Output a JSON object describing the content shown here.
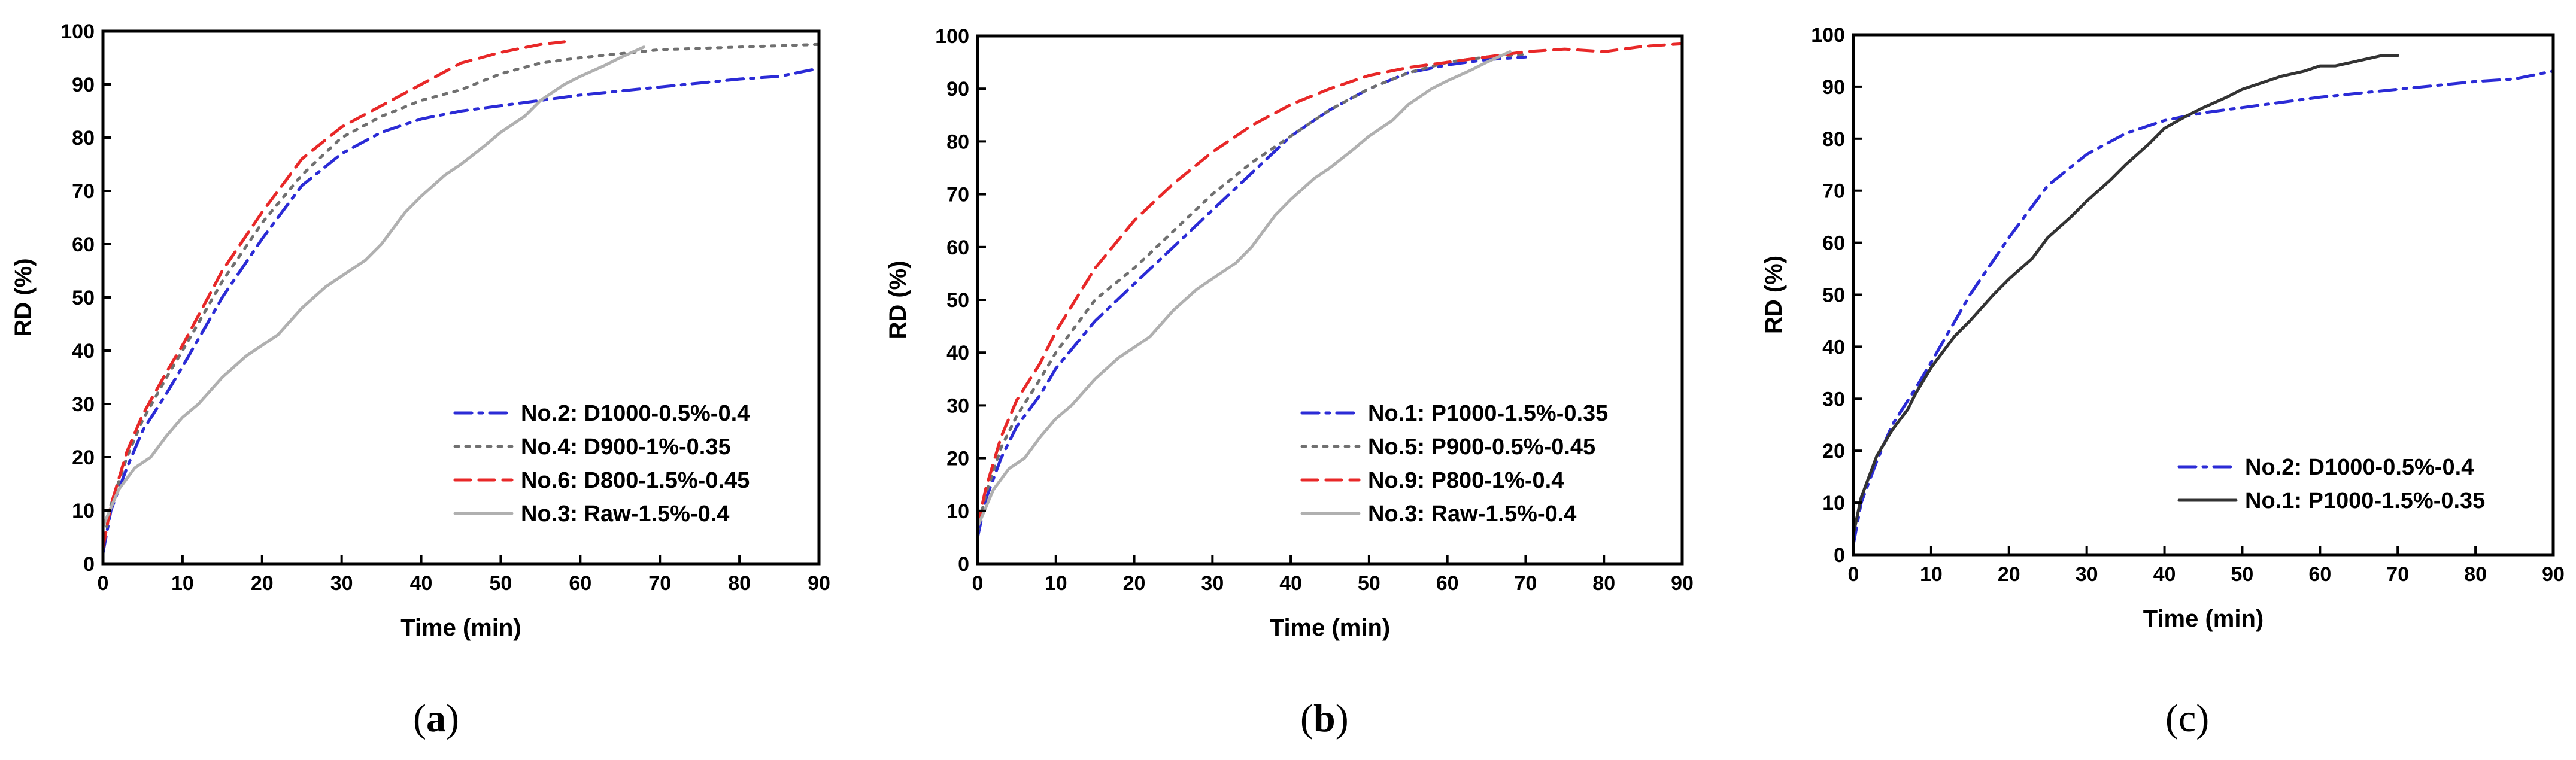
{
  "chart_data": [
    {
      "type": "line",
      "panel": "a",
      "caption": {
        "open": "(",
        "letter": "a",
        "close": ")",
        "bold": true
      },
      "xlabel": "Time (min)",
      "ylabel": "RD (%)",
      "xlim": [
        0,
        90
      ],
      "ylim": [
        0,
        100
      ],
      "xticks": [
        0,
        10,
        20,
        30,
        40,
        50,
        60,
        70,
        80,
        90
      ],
      "yticks": [
        0,
        10,
        20,
        30,
        40,
        50,
        60,
        70,
        80,
        90,
        100
      ],
      "legend_position": "bottom-right",
      "series": [
        {
          "name": "No.2: D1000-0.5%-0.4",
          "color": "#2b2bd6",
          "dash": "dashdot",
          "x": [
            0,
            1,
            3,
            5,
            8,
            10,
            15,
            20,
            25,
            30,
            35,
            40,
            45,
            50,
            55,
            60,
            70,
            80,
            85,
            90
          ],
          "y": [
            2,
            10,
            18,
            25,
            32,
            37,
            50,
            61,
            71,
            77,
            81,
            83.5,
            85,
            86,
            87,
            88,
            89.5,
            91,
            91.5,
            93
          ]
        },
        {
          "name": "No.4: D900-1%-0.35",
          "color": "#707070",
          "dash": "dot",
          "x": [
            0,
            1,
            3,
            5,
            8,
            10,
            15,
            20,
            25,
            30,
            35,
            40,
            45,
            50,
            55,
            60,
            70,
            80,
            90
          ],
          "y": [
            3,
            11,
            20,
            27,
            35,
            40,
            53,
            64,
            73,
            80,
            84,
            87,
            89,
            92,
            94,
            95,
            96.5,
            97,
            97.5
          ]
        },
        {
          "name": "No.6: D800-1.5%-0.45",
          "color": "#e82828",
          "dash": "dash",
          "x": [
            0,
            1,
            3,
            5,
            8,
            10,
            15,
            20,
            25,
            30,
            35,
            40,
            45,
            50,
            55,
            58
          ],
          "y": [
            3,
            11,
            21,
            28,
            36,
            41,
            55,
            66,
            76,
            82,
            86,
            90,
            94,
            96,
            97.5,
            98
          ]
        },
        {
          "name": "No.3: Raw-1.5%-0.4",
          "color": "#b0b0b0",
          "dash": "solid",
          "x": [
            0,
            2,
            4,
            6,
            8,
            10,
            12,
            15,
            18,
            20,
            22,
            25,
            28,
            30,
            33,
            35,
            38,
            40,
            43,
            45,
            48,
            50,
            53,
            55,
            58,
            60,
            63,
            65,
            68
          ],
          "y": [
            7,
            14,
            18,
            20,
            24,
            27.5,
            30,
            35,
            39,
            41,
            43,
            48,
            52,
            54,
            57,
            60,
            66,
            69,
            73,
            75,
            78.5,
            81,
            84,
            87,
            90,
            91.5,
            93.5,
            95,
            97
          ]
        }
      ]
    },
    {
      "type": "line",
      "panel": "b",
      "caption": {
        "open": "(",
        "letter": "b",
        "close": ")",
        "bold": true
      },
      "xlabel": "Time (min)",
      "ylabel": "RD (%)",
      "xlim": [
        0,
        90
      ],
      "ylim": [
        0,
        100
      ],
      "xticks": [
        0,
        10,
        20,
        30,
        40,
        50,
        60,
        70,
        80,
        90
      ],
      "yticks": [
        0,
        10,
        20,
        30,
        40,
        50,
        60,
        70,
        80,
        90,
        100
      ],
      "legend_position": "bottom-right",
      "series": [
        {
          "name": "No.1: P1000-1.5%-0.35",
          "color": "#2b2bd6",
          "dash": "dashdot",
          "x": [
            0,
            1,
            3,
            5,
            8,
            10,
            15,
            20,
            25,
            30,
            35,
            40,
            45,
            50,
            55,
            60,
            65,
            70
          ],
          "y": [
            5,
            12,
            20,
            26,
            32,
            37,
            46,
            53,
            60,
            67,
            74,
            81,
            86,
            90,
            93,
            94.5,
            95.5,
            96
          ]
        },
        {
          "name": "No.5: P900-0.5%-0.45",
          "color": "#707070",
          "dash": "dot",
          "x": [
            0,
            1,
            3,
            5,
            8,
            10,
            15,
            20,
            25,
            30,
            35,
            40,
            45,
            50,
            55,
            60,
            65,
            70
          ],
          "y": [
            6,
            13,
            22,
            28,
            35,
            40,
            50,
            56,
            63,
            70,
            76,
            81,
            86,
            90,
            93,
            95,
            96,
            96.5
          ]
        },
        {
          "name": "No.9: P800-1%-0.4",
          "color": "#e82828",
          "dash": "dash",
          "x": [
            0,
            1,
            3,
            5,
            8,
            10,
            15,
            20,
            25,
            30,
            35,
            40,
            45,
            50,
            55,
            60,
            65,
            70,
            75,
            80,
            85,
            90
          ],
          "y": [
            7,
            14,
            24,
            31,
            38,
            44,
            56,
            65,
            72,
            78,
            83,
            87,
            90,
            92.5,
            94,
            95,
            96,
            97,
            97.5,
            97,
            98,
            98.5
          ]
        },
        {
          "name": "No.3: Raw-1.5%-0.4",
          "color": "#b0b0b0",
          "dash": "solid",
          "x": [
            0,
            2,
            4,
            6,
            8,
            10,
            12,
            15,
            18,
            20,
            22,
            25,
            28,
            30,
            33,
            35,
            38,
            40,
            43,
            45,
            48,
            50,
            53,
            55,
            58,
            60,
            63,
            65,
            68
          ],
          "y": [
            7,
            14,
            18,
            20,
            24,
            27.5,
            30,
            35,
            39,
            41,
            43,
            48,
            52,
            54,
            57,
            60,
            66,
            69,
            73,
            75,
            78.5,
            81,
            84,
            87,
            90,
            91.5,
            93.5,
            95,
            97
          ]
        }
      ]
    },
    {
      "type": "line",
      "panel": "c",
      "caption": {
        "open": "(",
        "letter": "c",
        "close": ")",
        "bold": false
      },
      "xlabel": "Time (min)",
      "ylabel": "RD (%)",
      "xlim": [
        0,
        90
      ],
      "ylim": [
        0,
        100
      ],
      "xticks": [
        0,
        10,
        20,
        30,
        40,
        50,
        60,
        70,
        80,
        90
      ],
      "yticks": [
        0,
        10,
        20,
        30,
        40,
        50,
        60,
        70,
        80,
        90,
        100
      ],
      "legend_position": "bottom-right",
      "series": [
        {
          "name": "No.2: D1000-0.5%-0.4",
          "color": "#2b2bd6",
          "dash": "dashdot",
          "x": [
            0,
            1,
            3,
            5,
            8,
            10,
            15,
            20,
            25,
            30,
            35,
            40,
            45,
            50,
            55,
            60,
            70,
            80,
            85,
            90
          ],
          "y": [
            2,
            10,
            18,
            25,
            32,
            37,
            50,
            61,
            71,
            77,
            81,
            83.5,
            85,
            86,
            87,
            88,
            89.5,
            91,
            91.5,
            93
          ]
        },
        {
          "name": "No.1: P1000-1.5%-0.35",
          "color": "#333333",
          "dash": "solid",
          "x": [
            0,
            1,
            3,
            5,
            7,
            8,
            10,
            13,
            15,
            18,
            20,
            23,
            25,
            28,
            30,
            33,
            35,
            38,
            40,
            43,
            45,
            48,
            50,
            53,
            55,
            58,
            60,
            62,
            65,
            68,
            70
          ],
          "y": [
            4,
            11,
            19,
            24,
            28,
            31,
            36,
            42,
            45,
            50,
            53,
            57,
            61,
            65,
            68,
            72,
            75,
            79,
            82,
            84.5,
            86,
            88,
            89.5,
            91,
            92,
            93,
            94,
            94,
            95,
            96,
            96
          ]
        }
      ]
    }
  ]
}
